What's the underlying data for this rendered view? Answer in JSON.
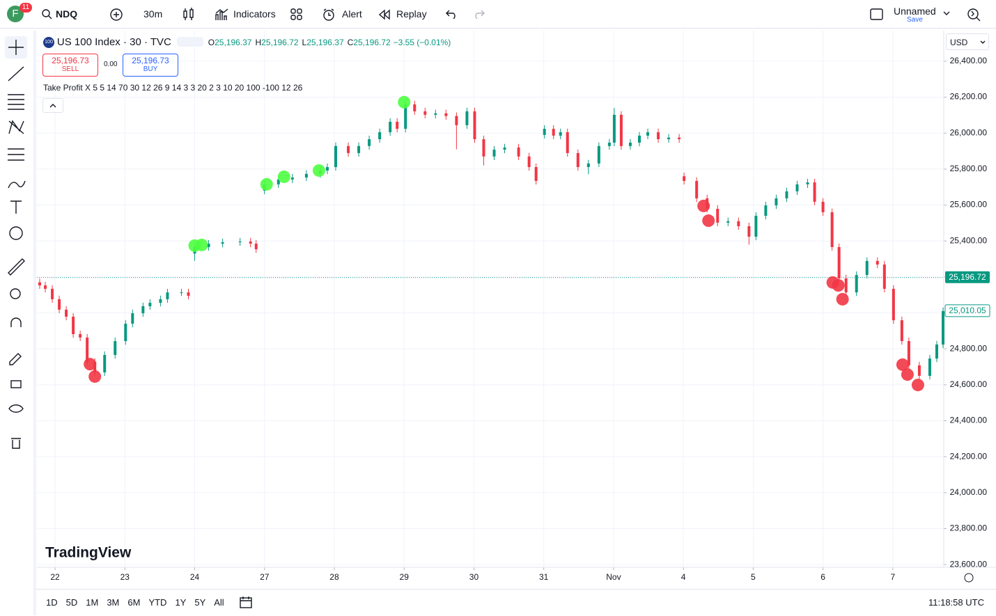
{
  "toolbar": {
    "avatar": "F",
    "badge": "11",
    "symbol": "NDQ",
    "interval": "30m",
    "indicators": "Indicators",
    "alert": "Alert",
    "replay": "Replay",
    "layout_name": "Unnamed",
    "layout_save": "Save"
  },
  "legend": {
    "symbol_badge": "100",
    "symbol": "US 100 Index · 30 · TVC",
    "ohlc": [
      {
        "label": "O",
        "value": "25,196.37"
      },
      {
        "label": "H",
        "value": "25,196.72"
      },
      {
        "label": "L",
        "value": "25,196.37"
      },
      {
        "label": "C",
        "value": "25,196.72"
      }
    ],
    "change": "−3.55 (−0.01%)",
    "sell_price": "25,196.73",
    "sell": "SELL",
    "spread": "0.00",
    "buy_price": "25,196.73",
    "buy": "BUY",
    "indicator": "Take Profit X 5 5 14 70 30 12 26 9 14 3 3 20 2 3 10 20 100 -100 12 26"
  },
  "currency": "USD",
  "watermark": "TradingView",
  "bottom_bar": {
    "ranges": [
      "1D",
      "5D",
      "1M",
      "3M",
      "6M",
      "YTD",
      "1Y",
      "5Y",
      "All"
    ],
    "clock": "11:18:58 UTC"
  },
  "chart_data": {
    "type": "candlestick",
    "up_color": "#089981",
    "down_color": "#f23645",
    "grid": true,
    "xlim": [
      -0.26,
      12.73
    ],
    "ylim": [
      23585,
      26570
    ],
    "xticks": [
      {
        "value": 0,
        "label": "22"
      },
      {
        "value": 1,
        "label": "23"
      },
      {
        "value": 2,
        "label": "24"
      },
      {
        "value": 3,
        "label": "27"
      },
      {
        "value": 4,
        "label": "28"
      },
      {
        "value": 5,
        "label": "29"
      },
      {
        "value": 6,
        "label": "30"
      },
      {
        "value": 7,
        "label": "31"
      },
      {
        "value": 8,
        "label": "Nov"
      },
      {
        "value": 9,
        "label": "4"
      },
      {
        "value": 10,
        "label": "5"
      },
      {
        "value": 11,
        "label": "6"
      },
      {
        "value": 12,
        "label": "7"
      }
    ],
    "yticks": [
      {
        "value": 23600,
        "label": "23,600.00"
      },
      {
        "value": 23800,
        "label": "23,800.00"
      },
      {
        "value": 24000,
        "label": "24,000.00"
      },
      {
        "value": 24200,
        "label": "24,200.00"
      },
      {
        "value": 24400,
        "label": "24,400.00"
      },
      {
        "value": 24600,
        "label": "24,600.00"
      },
      {
        "value": 24800,
        "label": "24,800.00"
      },
      {
        "value": 25000,
        "label": "25,000.00"
      },
      {
        "value": 25200,
        "label": "25,200.00"
      },
      {
        "value": 25400,
        "label": "25,400.00"
      },
      {
        "value": 25600,
        "label": "25,600.00"
      },
      {
        "value": 25800,
        "label": "25,800.00"
      },
      {
        "value": 26000,
        "label": "26,000.00"
      },
      {
        "value": 26200,
        "label": "26,200.00"
      },
      {
        "value": 26400,
        "label": "26,400.00"
      }
    ],
    "x": [
      -0.22,
      -0.14,
      -0.04,
      0.06,
      0.16,
      0.26,
      0.36,
      0.46,
      0.57,
      0.71,
      0.86,
      1.01,
      1.11,
      1.26,
      1.36,
      1.51,
      1.61,
      1.81,
      1.91,
      2.0,
      2.2,
      2.4,
      2.65,
      2.8,
      2.88,
      3.0,
      3.2,
      3.4,
      3.6,
      3.8,
      3.9,
      4.02,
      4.2,
      4.35,
      4.5,
      4.65,
      4.8,
      4.9,
      5.02,
      5.15,
      5.3,
      5.45,
      5.6,
      5.75,
      5.9,
      6.01,
      6.14,
      6.29,
      6.44,
      6.64,
      6.79,
      6.89,
      7.01,
      7.14,
      7.24,
      7.34,
      7.49,
      7.64,
      7.79,
      7.94,
      8.01,
      8.11,
      8.24,
      8.37,
      8.49,
      8.64,
      8.79,
      8.94,
      9.01,
      9.19,
      9.34,
      9.49,
      9.64,
      9.79,
      9.94,
      10.04,
      10.18,
      10.33,
      10.48,
      10.63,
      10.78,
      10.88,
      11.0,
      11.13,
      11.23,
      11.33,
      11.48,
      11.63,
      11.78,
      11.88,
      12.01,
      12.13,
      12.23,
      12.38,
      12.53,
      12.63,
      12.72
    ],
    "open": [
      25170,
      25153,
      25134,
      25076,
      25018,
      24979,
      24882,
      24863,
      24727,
      24669,
      24766,
      24843,
      24940,
      24998,
      25037,
      25056,
      25076,
      25114,
      25114,
      25330,
      25366,
      25385,
      25393,
      25397,
      25385,
      25680,
      25715,
      25742,
      25753,
      25773,
      25792,
      25811,
      25928,
      25889,
      25928,
      25966,
      26005,
      26063,
      26024,
      26160,
      26121,
      26102,
      26110,
      26095,
      26044,
      26121,
      25966,
      25870,
      25908,
      25920,
      25870,
      25811,
      25990,
      26024,
      25986,
      26005,
      25889,
      25811,
      25831,
      25928,
      25947,
      26102,
      25928,
      25947,
      25986,
      26005,
      25966,
      25975,
      25760,
      25734,
      25637,
      25579,
      25502,
      25510,
      25482,
      25424,
      25540,
      25598,
      25637,
      25676,
      25715,
      25726,
      25618,
      25560,
      25366,
      25192,
      25114,
      25211,
      25289,
      25269,
      25134,
      24959,
      24843,
      24708,
      24650,
      24746,
      24824
    ],
    "high": [
      25190,
      25173,
      25154,
      25096,
      25038,
      24999,
      24902,
      24883,
      24747,
      24786,
      24863,
      24960,
      25018,
      25057,
      25076,
      25096,
      25134,
      25134,
      25134,
      25386,
      25405,
      25413,
      25417,
      25417,
      25405,
      25735,
      25762,
      25773,
      25793,
      25812,
      25831,
      25948,
      25948,
      25948,
      25986,
      26025,
      26083,
      26083,
      26180,
      26180,
      26141,
      26130,
      26130,
      26115,
      26141,
      26141,
      25986,
      25928,
      25940,
      25940,
      25890,
      25831,
      26044,
      26044,
      26025,
      26025,
      25909,
      25851,
      25948,
      25967,
      26140,
      26122,
      25967,
      26006,
      26025,
      26025,
      25995,
      25995,
      25780,
      25754,
      25657,
      25599,
      25530,
      25530,
      25502,
      25560,
      25618,
      25657,
      25696,
      25735,
      25746,
      25746,
      25638,
      25580,
      25386,
      25212,
      25231,
      25309,
      25309,
      25289,
      25154,
      24979,
      24863,
      24728,
      24766,
      24844,
      25030
    ],
    "low": [
      25133,
      25114,
      25056,
      24998,
      24959,
      24862,
      24843,
      24707,
      24649,
      24649,
      24746,
      24823,
      24920,
      24978,
      25017,
      25036,
      25056,
      25094,
      25075,
      25290,
      25346,
      25365,
      25373,
      25365,
      25334,
      25660,
      25695,
      25722,
      25733,
      25753,
      25772,
      25791,
      25869,
      25869,
      25908,
      25946,
      25985,
      26004,
      26004,
      26101,
      26082,
      26082,
      26075,
      25910,
      26024,
      25946,
      25820,
      25850,
      25888,
      25850,
      25791,
      25714,
      25970,
      25966,
      25966,
      25869,
      25791,
      25771,
      25811,
      25908,
      25927,
      25908,
      25908,
      25927,
      25966,
      25946,
      25946,
      25946,
      25714,
      25617,
      25559,
      25482,
      25482,
      25462,
      25380,
      25404,
      25520,
      25578,
      25617,
      25656,
      25695,
      25598,
      25540,
      25346,
      25172,
      25094,
      25094,
      25191,
      25249,
      25114,
      24939,
      24823,
      24688,
      24630,
      24630,
      24726,
      24804
    ],
    "close": [
      25153,
      25134,
      25076,
      25018,
      24979,
      24882,
      24863,
      24727,
      24669,
      24766,
      24843,
      24940,
      24998,
      25037,
      25056,
      25076,
      25114,
      25114,
      25095,
      25366,
      25385,
      25393,
      25397,
      25385,
      25354,
      25715,
      25742,
      25753,
      25773,
      25792,
      25811,
      25928,
      25889,
      25928,
      25966,
      26005,
      26063,
      26024,
      26160,
      26121,
      26102,
      26110,
      26095,
      26044,
      26121,
      25966,
      25870,
      25908,
      25920,
      25870,
      25811,
      25734,
      26024,
      25986,
      26005,
      25889,
      25811,
      25831,
      25928,
      25947,
      26102,
      25928,
      25947,
      25986,
      26005,
      25966,
      25975,
      25966,
      25734,
      25637,
      25579,
      25502,
      25510,
      25482,
      25424,
      25540,
      25598,
      25637,
      25676,
      25715,
      25726,
      25618,
      25560,
      25366,
      25192,
      25114,
      25211,
      25289,
      25269,
      25134,
      24959,
      24843,
      24708,
      24650,
      24746,
      24824,
      25010.05
    ],
    "buy_signals": {
      "color": "#4cff3f",
      "x": [
        2.0,
        2.1,
        3.03,
        3.28,
        3.78,
        5.0
      ],
      "y": [
        25374,
        25378,
        25715,
        25757,
        25792,
        26172
      ]
    },
    "sell_signals": {
      "color": "#f23645",
      "x": [
        0.5,
        0.57,
        9.29,
        9.36,
        11.14,
        11.22,
        11.28,
        12.14,
        12.21,
        12.36
      ],
      "y": [
        24715,
        24646,
        25595,
        25513,
        25169,
        25153,
        25076,
        24712,
        24657,
        24599
      ]
    },
    "reference_price": {
      "value": 25196.72,
      "label": "25,196.72"
    },
    "last_price": {
      "value": 25010.05,
      "label": "25,010.05"
    }
  }
}
